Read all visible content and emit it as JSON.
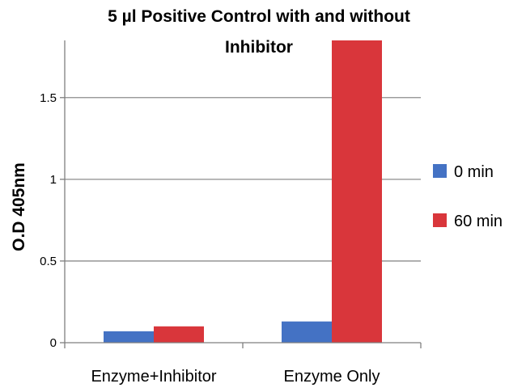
{
  "chart_data": {
    "type": "bar",
    "title_lines": [
      "5 µl Positive Control with and without",
      "Inhibitor"
    ],
    "ylabel": "O.D 405nm",
    "xlabel": "",
    "categories": [
      "Enzyme+Inhibitor",
      "Enzyme Only"
    ],
    "series": [
      {
        "name": "0 min",
        "values": [
          0.07,
          0.13
        ],
        "color": "#4472C4"
      },
      {
        "name": "60 min",
        "values": [
          0.1,
          1.85
        ],
        "color": "#D9363B"
      }
    ],
    "ylim": [
      0,
      1.85
    ],
    "yticks": [
      0,
      0.5,
      1,
      1.5
    ],
    "ytick_labels": [
      "0",
      "0.5",
      "1",
      "1.5"
    ],
    "grid": true,
    "legend_position": "right"
  }
}
